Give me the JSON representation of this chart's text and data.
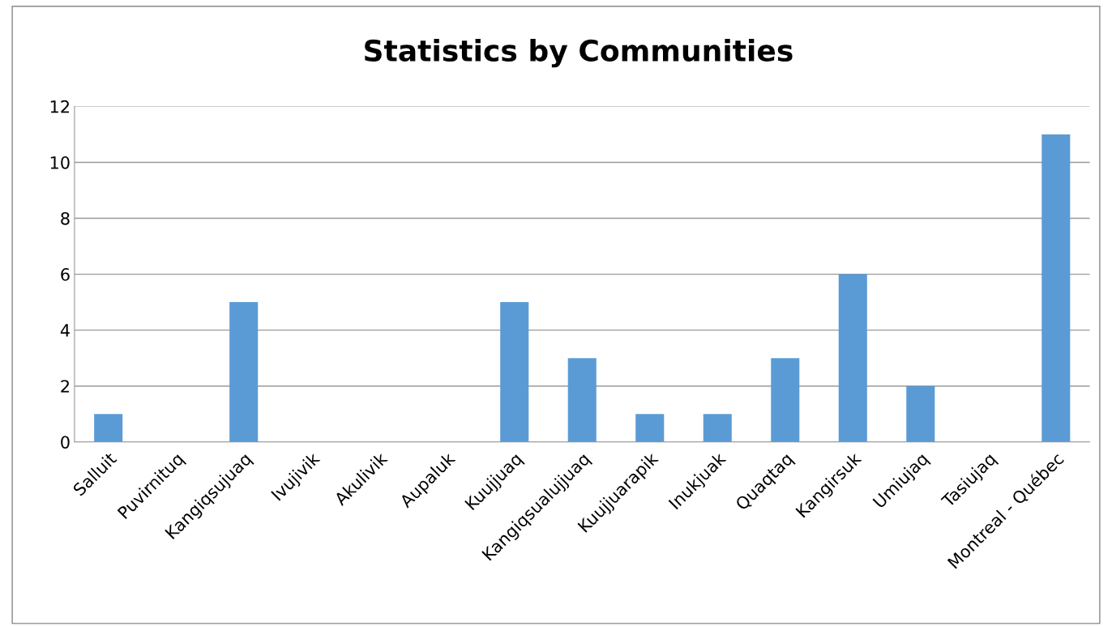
{
  "chart_data": {
    "type": "bar",
    "title": "Statistics by Communities",
    "categories": [
      "Salluit",
      "Puvirnituq",
      "Kangiqsujuaq",
      "Ivujivik",
      "Akulivik",
      "Aupaluk",
      "Kuujjuaq",
      "Kangiqsualujjuaq",
      "Kuujjuarapik",
      "Inukjuak",
      "Quaqtaq",
      "Kangirsuk",
      "Umiujaq",
      "Tasiujaq",
      "Montreal - Québec"
    ],
    "values": [
      1,
      0,
      5,
      0,
      0,
      0,
      5,
      3,
      1,
      1,
      3,
      6,
      2,
      0,
      11
    ],
    "color": "#5b9bd5",
    "ylim": [
      0,
      12
    ],
    "yticks": [
      0,
      2,
      4,
      6,
      8,
      10,
      12
    ],
    "grid": "y",
    "legend": false
  }
}
